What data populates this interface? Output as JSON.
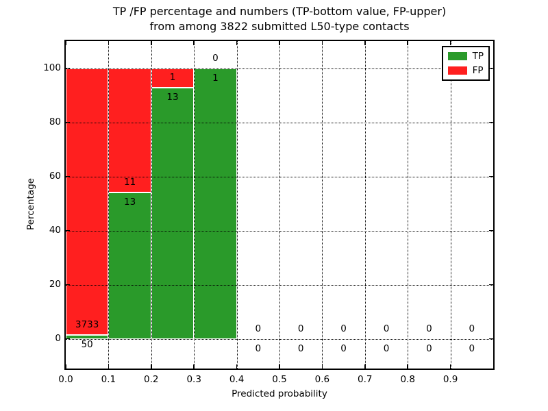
{
  "title": {
    "line1": "TP /FP percentage and numbers (TP-bottom value, FP-upper)",
    "line2": "from among 3822 submitted L50-type contacts"
  },
  "colors": {
    "tp": "#2a9a2a",
    "fp": "#ff1f1f",
    "axis": "#000000",
    "background": "#ffffff"
  },
  "chart_data": {
    "type": "bar",
    "stacked": true,
    "title": "TP /FP percentage and numbers (TP-bottom value, FP-upper) from among 3822 submitted L50-type contacts",
    "xlabel": "Predicted probability",
    "ylabel": "Percentage",
    "xlim": [
      0.0,
      1.0
    ],
    "ylim": [
      -11,
      110
    ],
    "x_ticks": [
      "0.0",
      "0.1",
      "0.2",
      "0.3",
      "0.4",
      "0.5",
      "0.6",
      "0.7",
      "0.8",
      "0.9"
    ],
    "y_ticks": [
      0,
      20,
      40,
      60,
      80,
      100
    ],
    "grid": {
      "style": "dotted",
      "color": "#000000",
      "above_bars": true
    },
    "legend": {
      "position": "upper-right",
      "entries": [
        {
          "label": "TP",
          "color": "#2a9a2a"
        },
        {
          "label": "FP",
          "color": "#ff1f1f"
        }
      ]
    },
    "bins": [
      {
        "x0": 0.0,
        "x1": 0.1,
        "tp": 50,
        "fp": 3733,
        "tp_pct": 1.32,
        "fp_pct": 98.68
      },
      {
        "x0": 0.1,
        "x1": 0.2,
        "tp": 13,
        "fp": 11,
        "tp_pct": 54.17,
        "fp_pct": 45.83
      },
      {
        "x0": 0.2,
        "x1": 0.3,
        "tp": 13,
        "fp": 1,
        "tp_pct": 92.86,
        "fp_pct": 7.14
      },
      {
        "x0": 0.3,
        "x1": 0.4,
        "tp": 1,
        "fp": 0,
        "tp_pct": 100,
        "fp_pct": 0
      },
      {
        "x0": 0.4,
        "x1": 0.5,
        "tp": 0,
        "fp": 0,
        "tp_pct": 0,
        "fp_pct": 0
      },
      {
        "x0": 0.5,
        "x1": 0.6,
        "tp": 0,
        "fp": 0,
        "tp_pct": 0,
        "fp_pct": 0
      },
      {
        "x0": 0.6,
        "x1": 0.7,
        "tp": 0,
        "fp": 0,
        "tp_pct": 0,
        "fp_pct": 0
      },
      {
        "x0": 0.7,
        "x1": 0.8,
        "tp": 0,
        "fp": 0,
        "tp_pct": 0,
        "fp_pct": 0
      },
      {
        "x0": 0.8,
        "x1": 0.9,
        "tp": 0,
        "fp": 0,
        "tp_pct": 0,
        "fp_pct": 0
      },
      {
        "x0": 0.9,
        "x1": 1.0,
        "tp": 0,
        "fp": 0,
        "tp_pct": 0,
        "fp_pct": 0
      }
    ]
  }
}
